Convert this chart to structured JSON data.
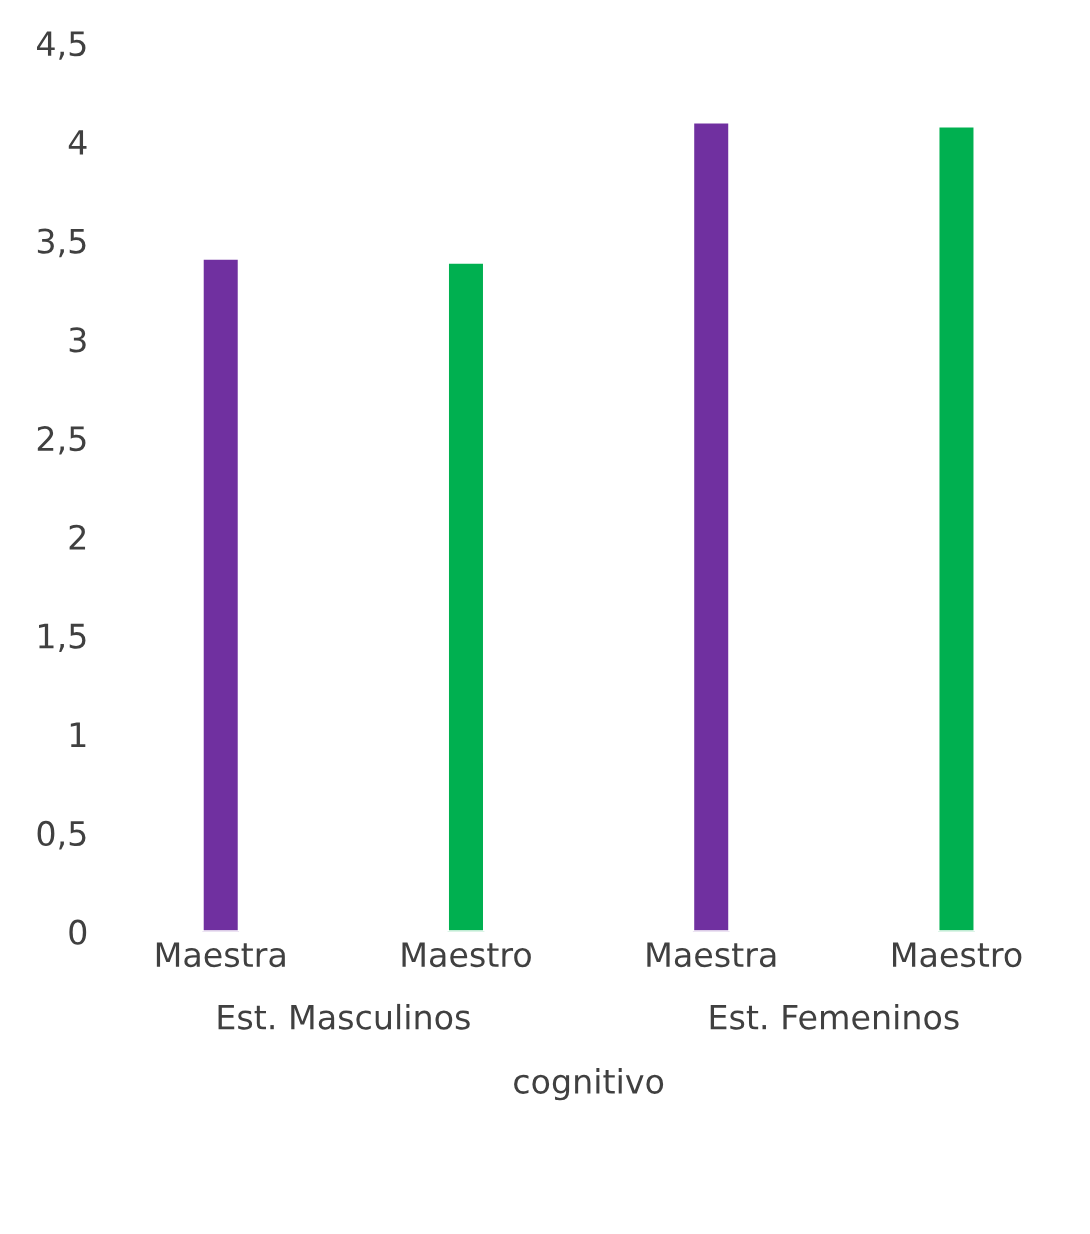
{
  "chart_data": {
    "type": "bar",
    "xlabel": "cognitivo",
    "categories": [
      "Maestra",
      "Maestro",
      "Maestra",
      "Maestro"
    ],
    "values": [
      3.41,
      3.39,
      4.1,
      4.08
    ],
    "colors": [
      "#7030a0",
      "#00b050",
      "#7030a0",
      "#00b050"
    ],
    "annotations": [
      "Est. Masculinos",
      "Est. Femeninos"
    ],
    "ylim": [
      0,
      4.5
    ],
    "yticks": [
      0,
      {
        "value": 0.5,
        "label": "0,5"
      },
      1,
      {
        "value": 1.5,
        "label": "1,5"
      },
      2,
      {
        "value": 2.5,
        "label": "2,5"
      },
      3,
      {
        "value": 3.5,
        "label": "3,5"
      },
      4,
      {
        "value": 4.5,
        "label": "4,5"
      }
    ],
    "grid": false,
    "legend": false
  }
}
